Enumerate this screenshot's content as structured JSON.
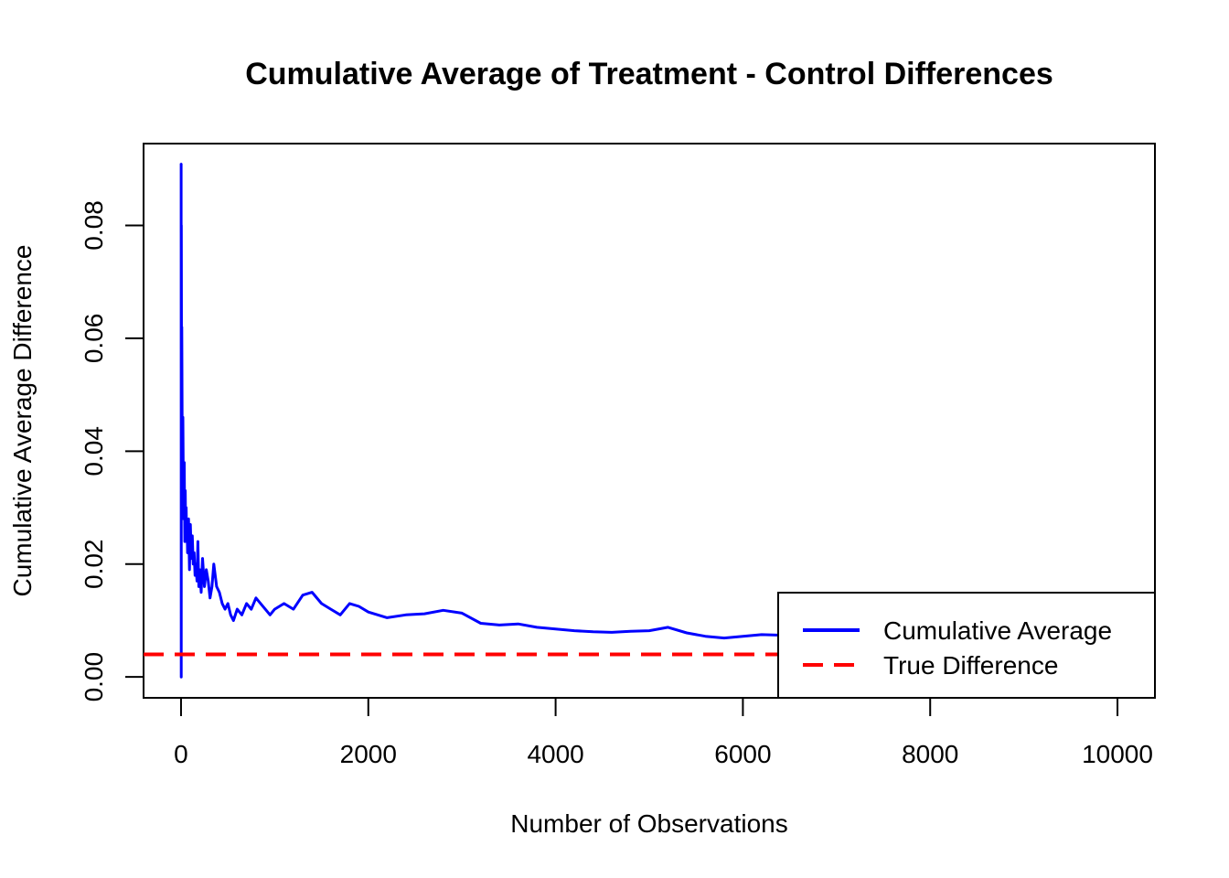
{
  "chart_data": {
    "type": "line",
    "title": "Cumulative Average of Treatment - Control Differences",
    "xlabel": "Number of Observations",
    "ylabel": "Cumulative Average Difference",
    "xlim": [
      -400,
      10400
    ],
    "ylim": [
      -0.0037,
      0.0945
    ],
    "x_ticks": [
      0,
      2000,
      4000,
      6000,
      8000,
      10000
    ],
    "x_tick_labels": [
      "0",
      "2000",
      "4000",
      "6000",
      "8000",
      "10000"
    ],
    "y_ticks": [
      0.0,
      0.02,
      0.04,
      0.06,
      0.08
    ],
    "y_tick_labels": [
      "0.00",
      "0.02",
      "0.04",
      "0.06",
      "0.08"
    ],
    "grid": false,
    "legend_position": "bottom-right",
    "series": [
      {
        "name": "Cumulative Average",
        "color": "#0000ff",
        "style": "solid",
        "x": [
          1,
          2,
          3,
          5,
          8,
          12,
          16,
          20,
          25,
          30,
          35,
          40,
          45,
          50,
          55,
          60,
          65,
          70,
          80,
          90,
          100,
          110,
          120,
          130,
          140,
          150,
          160,
          170,
          180,
          190,
          200,
          215,
          230,
          250,
          270,
          290,
          310,
          330,
          350,
          380,
          410,
          440,
          470,
          500,
          530,
          560,
          600,
          650,
          700,
          750,
          800,
          850,
          900,
          950,
          1000,
          1100,
          1200,
          1300,
          1400,
          1500,
          1600,
          1700,
          1800,
          1900,
          2000,
          2200,
          2400,
          2600,
          2800,
          3000,
          3200,
          3400,
          3600,
          3800,
          4000,
          4200,
          4400,
          4600,
          4800,
          5000,
          5200,
          5400,
          5600,
          5800,
          6000,
          6200,
          6400,
          6600,
          6800,
          7000,
          7200,
          7400,
          7600,
          7800,
          8000,
          8200,
          8400,
          8600,
          8800,
          9000,
          9200,
          9400,
          9600,
          9800,
          10000
        ],
        "values": [
          0.091,
          0.0,
          0.08,
          0.058,
          0.062,
          0.045,
          0.03,
          0.046,
          0.034,
          0.028,
          0.038,
          0.024,
          0.033,
          0.025,
          0.03,
          0.024,
          0.027,
          0.022,
          0.028,
          0.019,
          0.027,
          0.021,
          0.025,
          0.02,
          0.022,
          0.018,
          0.02,
          0.017,
          0.024,
          0.016,
          0.019,
          0.015,
          0.021,
          0.016,
          0.019,
          0.017,
          0.014,
          0.016,
          0.02,
          0.016,
          0.015,
          0.013,
          0.012,
          0.013,
          0.011,
          0.01,
          0.012,
          0.011,
          0.013,
          0.012,
          0.014,
          0.013,
          0.012,
          0.011,
          0.012,
          0.013,
          0.012,
          0.0145,
          0.015,
          0.013,
          0.012,
          0.011,
          0.013,
          0.0125,
          0.0115,
          0.0105,
          0.011,
          0.0112,
          0.0118,
          0.0113,
          0.0095,
          0.0092,
          0.0094,
          0.0088,
          0.0085,
          0.0082,
          0.008,
          0.0079,
          0.0081,
          0.0082,
          0.0088,
          0.0078,
          0.0072,
          0.0069,
          0.0072,
          0.0075,
          0.0074,
          0.0072,
          0.007,
          0.0068,
          0.0066,
          0.0064,
          0.0063,
          0.0062,
          0.0061,
          0.006,
          0.0059,
          0.0058,
          0.0057,
          0.0056,
          0.0055,
          0.0054,
          0.0053,
          0.0053,
          0.0052
        ]
      },
      {
        "name": "True Difference",
        "color": "#ff0000",
        "style": "dashed",
        "y": 0.004
      }
    ]
  }
}
